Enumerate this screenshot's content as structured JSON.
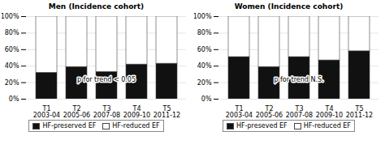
{
  "chart_data": [
    {
      "type": "bar",
      "title": "Men (Incidence cohort)",
      "stacked": true,
      "categories": [
        "T1\n2003-04",
        "T2\n2005-06",
        "T3\n2007-08",
        "T4\n2009-10",
        "T5\n2011-12"
      ],
      "series": [
        {
          "name": "HF-preserved EF",
          "color": "#111111",
          "values": [
            32,
            39,
            33,
            42,
            43
          ]
        },
        {
          "name": "HF-reduced EF",
          "color": "#ffffff",
          "values": [
            68,
            61,
            67,
            58,
            57
          ]
        }
      ],
      "ylim": [
        0,
        100
      ],
      "yticks": [
        {
          "value": 0,
          "label": "0%"
        },
        {
          "value": 20,
          "label": "20%"
        },
        {
          "value": 40,
          "label": "40%"
        },
        {
          "value": 60,
          "label": "60%"
        },
        {
          "value": 80,
          "label": "80%"
        },
        {
          "value": 100,
          "label": "100%"
        }
      ],
      "grid": true,
      "legend": "bottom",
      "annotation": "p for trend < 0.05"
    },
    {
      "type": "bar",
      "title": "Women (Incidence cohort)",
      "stacked": true,
      "categories": [
        "T1\n2003-04",
        "T2\n2005-06",
        "T3\n2007-08",
        "T4\n2009-10",
        "T5\n2011-12"
      ],
      "series": [
        {
          "name": "HF-preseved EF",
          "color": "#111111",
          "values": [
            51,
            39,
            51,
            47,
            58
          ]
        },
        {
          "name": "HF-reduced EF",
          "color": "#ffffff",
          "values": [
            49,
            61,
            49,
            53,
            42
          ]
        }
      ],
      "ylim": [
        0,
        100
      ],
      "yticks": [
        {
          "value": 0,
          "label": "0%"
        },
        {
          "value": 20,
          "label": "20%"
        },
        {
          "value": 40,
          "label": "40%"
        },
        {
          "value": 60,
          "label": "60%"
        },
        {
          "value": 80,
          "label": "80%"
        },
        {
          "value": 100,
          "label": "100%"
        }
      ],
      "grid": true,
      "legend": "bottom",
      "annotation": "p for trend N.S."
    }
  ]
}
